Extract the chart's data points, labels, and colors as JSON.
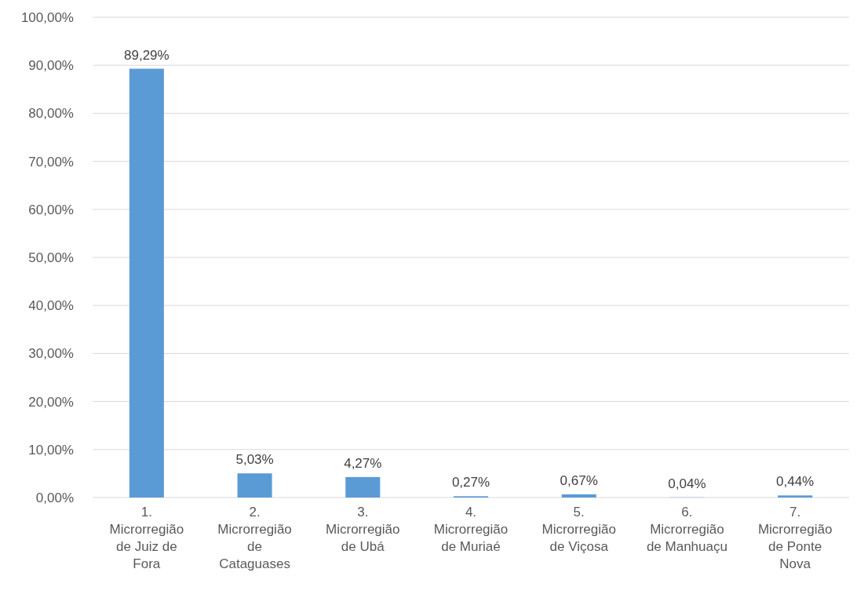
{
  "chart_data": {
    "type": "bar",
    "categories": [
      "1. Microrregião de Juiz de Fora",
      "2. Microrregião de Cataguases",
      "3. Microrregião de Ubá",
      "4. Microrregião de Muriaé",
      "5. Microrregião de Viçosa",
      "6. Microrregião de Manhuaçu",
      "7. Microrregião de Ponte Nova"
    ],
    "values": [
      89.29,
      5.03,
      4.27,
      0.27,
      0.67,
      0.04,
      0.44
    ],
    "value_labels": [
      "89,29%",
      "5,03%",
      "4,27%",
      "0,27%",
      "0,67%",
      "0,04%",
      "0,44%"
    ],
    "color": "#5b9bd5",
    "ylim": [
      0,
      100
    ],
    "yticks": [
      {
        "value": 0,
        "label": "0,00%"
      },
      {
        "value": 10,
        "label": "10,00%"
      },
      {
        "value": 20,
        "label": "20,00%"
      },
      {
        "value": 30,
        "label": "30,00%"
      },
      {
        "value": 40,
        "label": "40,00%"
      },
      {
        "value": 50,
        "label": "50,00%"
      },
      {
        "value": 60,
        "label": "60,00%"
      },
      {
        "value": 70,
        "label": "70,00%"
      },
      {
        "value": 80,
        "label": "80,00%"
      },
      {
        "value": 90,
        "label": "90,00%"
      },
      {
        "value": 100,
        "label": "100,00%"
      }
    ],
    "grid": "y"
  }
}
